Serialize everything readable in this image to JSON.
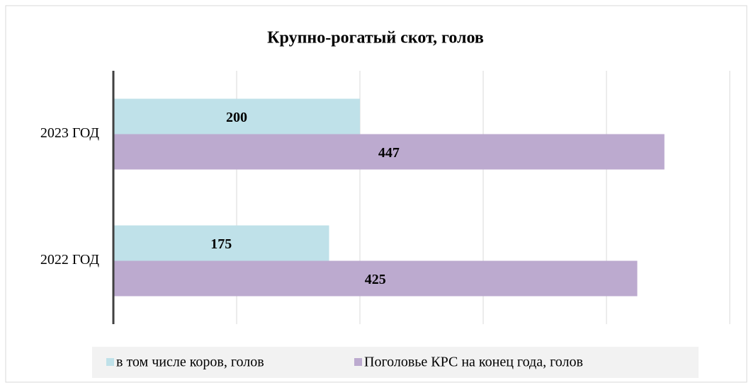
{
  "chart_data": {
    "type": "barh",
    "title": "Крупно-рогатый скот, голов",
    "categories": [
      "2023 ГОД",
      "2022 ГОД"
    ],
    "series": [
      {
        "name": "в том числе коров, голов",
        "color": "#bfe1e9",
        "values": [
          200,
          175
        ]
      },
      {
        "name": "Поголовье КРС на конец года, голов",
        "color": "#bcaacf",
        "values": [
          447,
          425
        ]
      }
    ],
    "xlim": [
      0,
      500
    ],
    "xticks": [
      0,
      100,
      200,
      300,
      400,
      500
    ],
    "grid": true,
    "legend": "bottom"
  }
}
